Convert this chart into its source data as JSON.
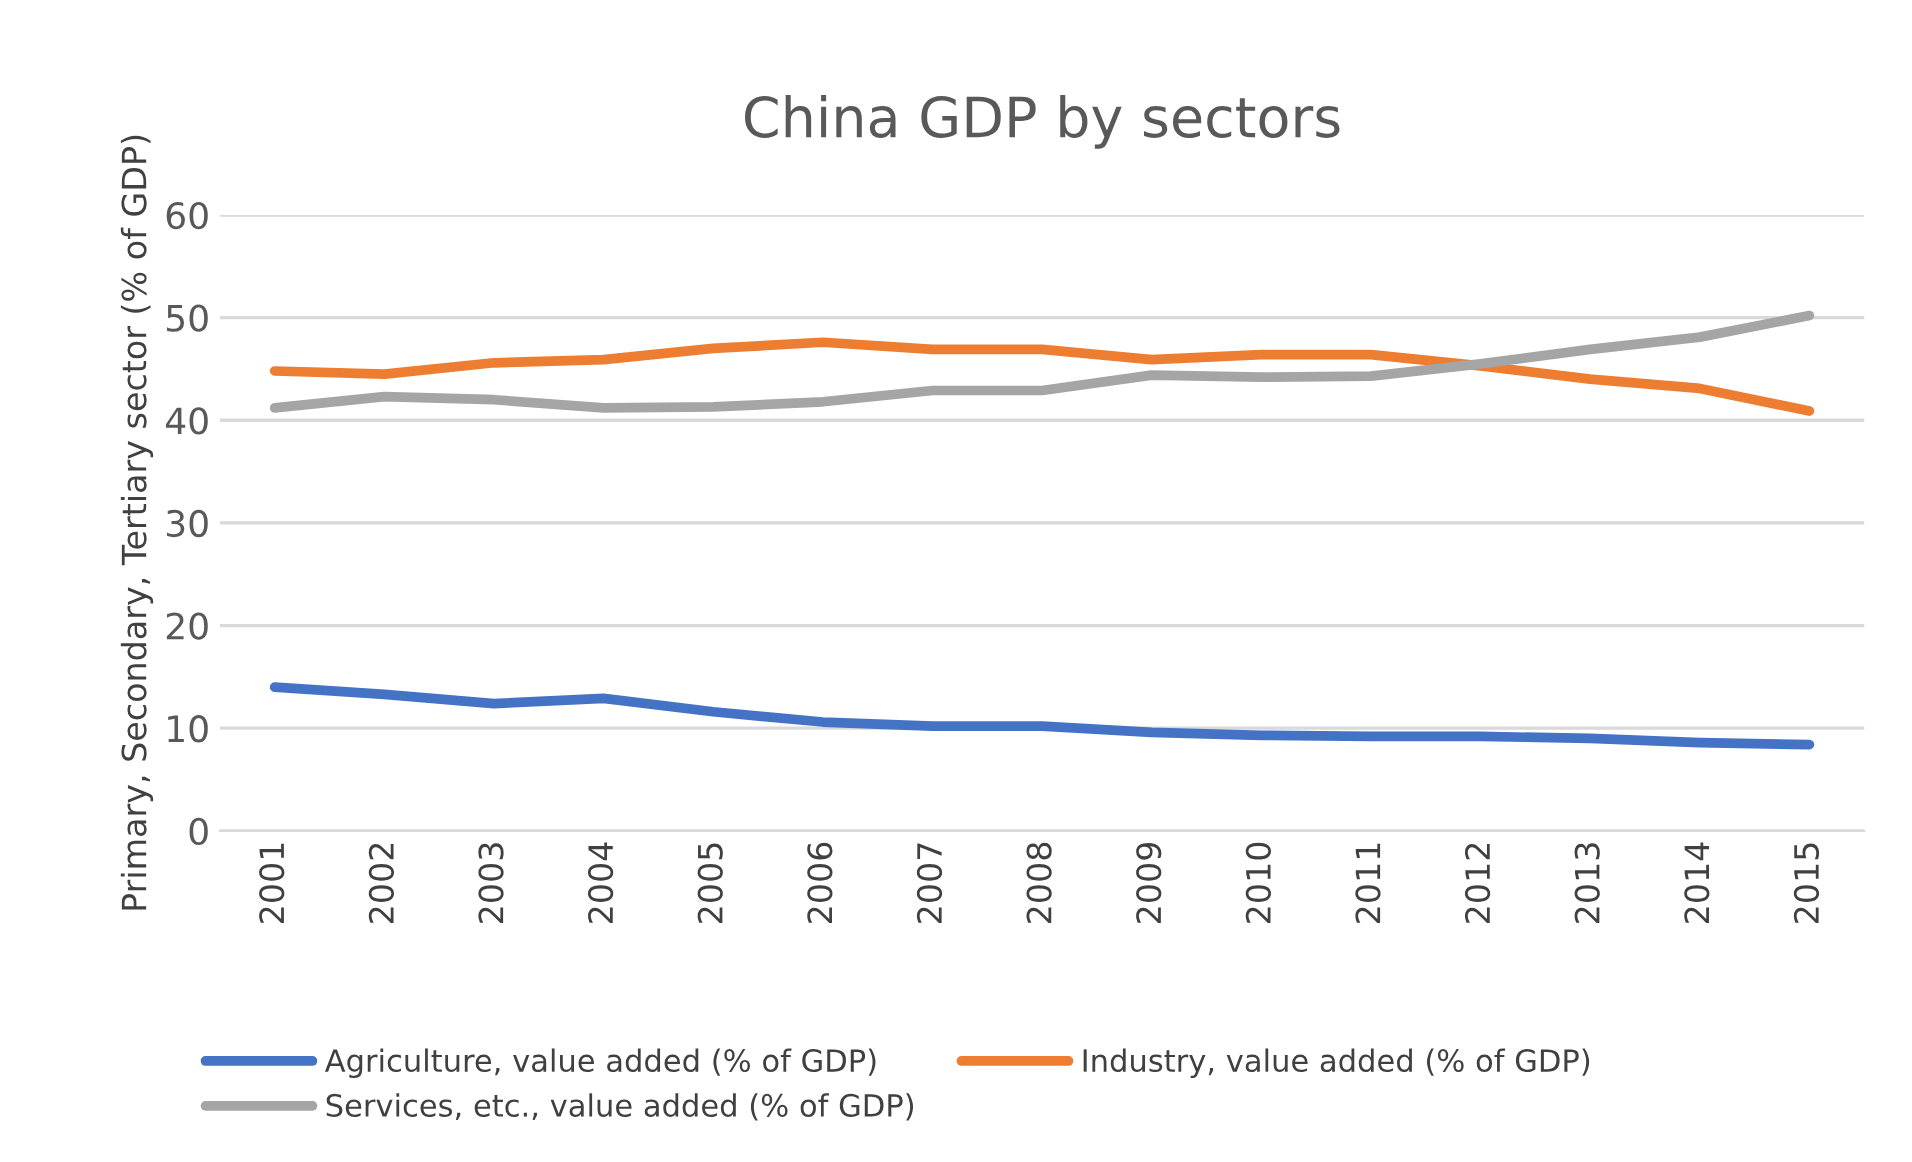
{
  "chart_data": {
    "type": "line",
    "title": "China GDP by sectors",
    "ylabel": "Primary, Secondary, Tertiary sector (% of GDP)",
    "categories": [
      "2001",
      "2002",
      "2003",
      "2004",
      "2005",
      "2006",
      "2007",
      "2008",
      "2009",
      "2010",
      "2011",
      "2012",
      "2013",
      "2014",
      "2015"
    ],
    "series": [
      {
        "name": "Agriculture, value added (% of GDP)",
        "color": "#4472c4",
        "values": [
          14.0,
          13.3,
          12.4,
          12.9,
          11.6,
          10.6,
          10.2,
          10.2,
          9.6,
          9.3,
          9.2,
          9.2,
          9.0,
          8.6,
          8.4
        ]
      },
      {
        "name": "Industry, value added (% of GDP)",
        "color": "#ed7d31",
        "values": [
          44.8,
          44.5,
          45.6,
          45.9,
          47.0,
          47.6,
          46.9,
          46.9,
          45.9,
          46.4,
          46.4,
          45.3,
          44.0,
          43.1,
          40.9
        ]
      },
      {
        "name": "Services, etc., value added (% of GDP)",
        "color": "#a5a5a5",
        "values": [
          41.2,
          42.3,
          42.0,
          41.2,
          41.3,
          41.8,
          42.9,
          42.9,
          44.4,
          44.2,
          44.3,
          45.5,
          46.9,
          48.1,
          50.2
        ]
      }
    ],
    "ylim": [
      0,
      60
    ],
    "yticks": [
      0,
      10,
      20,
      30,
      40,
      50,
      60
    ],
    "grid": "y",
    "legend": "bottom",
    "marker": "none",
    "line_style": "solid"
  }
}
